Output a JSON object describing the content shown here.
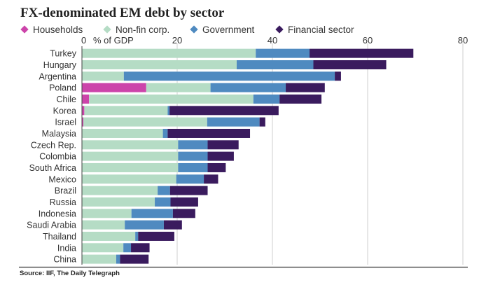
{
  "source": "Source: IIF, The Daily Telegraph",
  "chart_data": {
    "type": "bar",
    "orientation": "horizontal",
    "stacked": true,
    "title": "FX-denominated EM debt by sector",
    "axis_unit_label": "% of GDP",
    "xlim": [
      0,
      80
    ],
    "xticks": [
      "0",
      "20",
      "40",
      "60",
      "80"
    ],
    "grid": true,
    "legend_position": "top",
    "categories": [
      "Turkey",
      "Hungary",
      "Argentina",
      "Poland",
      "Chile",
      "Korea",
      "Israel",
      "Malaysia",
      "Czech Rep.",
      "Colombia",
      "South Africa",
      "Mexico",
      "Brazil",
      "Russia",
      "Indonesia",
      "Saudi Arabia",
      "Thailand",
      "India",
      "China"
    ],
    "series": [
      {
        "name": "Households",
        "color": "#cc44aa",
        "values": [
          0,
          0,
          0,
          13.5,
          1.5,
          0.5,
          0.3,
          0,
          0,
          0,
          0,
          0,
          0,
          0,
          0,
          0,
          0,
          0,
          0
        ]
      },
      {
        "name": "Non-fin corp.",
        "color": "#b5dcc5",
        "values": [
          36.5,
          32.5,
          8.8,
          13.5,
          34.5,
          17.5,
          26,
          17,
          20.2,
          20.2,
          20.2,
          19.8,
          15.9,
          15.3,
          10.4,
          9,
          11.2,
          8.7,
          7.2
        ]
      },
      {
        "name": "Government",
        "color": "#4f8ac0",
        "values": [
          11.3,
          16.1,
          44.3,
          15.8,
          5.5,
          0.4,
          11,
          1,
          6.2,
          6.2,
          6.2,
          5.8,
          2.6,
          3.3,
          8.7,
          8.2,
          0.6,
          1.6,
          0.8
        ]
      },
      {
        "name": "Financial sector",
        "color": "#3a1b5e",
        "values": [
          21.8,
          15.3,
          1.3,
          8.2,
          8.8,
          22.9,
          1.2,
          17.3,
          6.5,
          5.5,
          3.8,
          3,
          7.9,
          5.8,
          4.7,
          3.8,
          7.6,
          3.9,
          6
        ]
      }
    ]
  }
}
